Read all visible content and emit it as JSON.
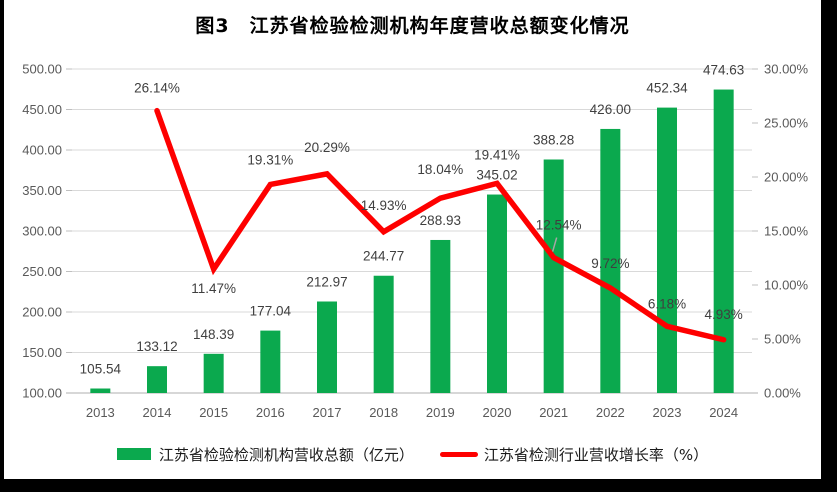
{
  "chart_data": {
    "type": "combo",
    "title": "图3　江苏省检验检测机构年度营收总额变化情况",
    "categories": [
      "2013",
      "2014",
      "2015",
      "2016",
      "2017",
      "2018",
      "2019",
      "2020",
      "2021",
      "2022",
      "2023",
      "2024"
    ],
    "series": [
      {
        "name": "江苏省检验检测机构营收总额（亿元）",
        "type": "bar",
        "axis": "left",
        "color": "#0BA94E",
        "values": [
          105.54,
          133.12,
          148.39,
          177.04,
          212.97,
          244.77,
          288.93,
          345.02,
          388.28,
          426.0,
          452.34,
          474.63
        ],
        "labels": [
          "105.54",
          "133.12",
          "148.39",
          "177.04",
          "212.97",
          "244.77",
          "288.93",
          "345.02",
          "388.28",
          "426.00",
          "452.34",
          "474.63"
        ]
      },
      {
        "name": "江苏省检测行业营收增长率（%）",
        "type": "line",
        "axis": "right",
        "color": "#FE0000",
        "values": [
          null,
          26.14,
          11.47,
          19.31,
          20.29,
          14.93,
          18.04,
          19.41,
          12.54,
          9.72,
          6.18,
          4.93
        ],
        "labels": [
          null,
          "26.14%",
          "11.47%",
          "19.31%",
          "20.29%",
          "14.93%",
          "18.04%",
          "19.41%",
          "12.54%",
          "9.72%",
          "6.18%",
          "4.93%"
        ],
        "label_offsets": [
          null,
          [
            0,
            -18
          ],
          [
            0,
            24
          ],
          [
            0,
            -20
          ],
          [
            0,
            -22
          ],
          [
            0,
            -22
          ],
          [
            0,
            -24
          ],
          [
            0,
            -24
          ],
          [
            5,
            -28
          ],
          [
            0,
            -20
          ],
          [
            0,
            -18
          ],
          [
            0,
            -21
          ]
        ],
        "leader_lines": [
          {
            "index": 8
          }
        ]
      }
    ],
    "axes": {
      "left": {
        "min": 100,
        "max": 500,
        "step": 50,
        "tick_labels": [
          "100.00",
          "150.00",
          "200.00",
          "250.00",
          "300.00",
          "350.00",
          "400.00",
          "450.00",
          "500.00"
        ]
      },
      "right": {
        "min": 0,
        "max": 30,
        "step": 5,
        "tick_labels": [
          "0.00%",
          "5.00%",
          "10.00%",
          "15.00%",
          "20.00%",
          "25.00%",
          "30.00%"
        ]
      }
    },
    "grid": true,
    "legend": {
      "position": "bottom"
    },
    "style": {
      "grid_color": "#D9D9D9",
      "axis_color": "#BFBFBF",
      "tick_text_color": "#595959",
      "data_label_color": "#3F3F3F",
      "leader_color": "#A6A6A6",
      "background": "#FFFFFF",
      "page_background": "#000000"
    }
  }
}
